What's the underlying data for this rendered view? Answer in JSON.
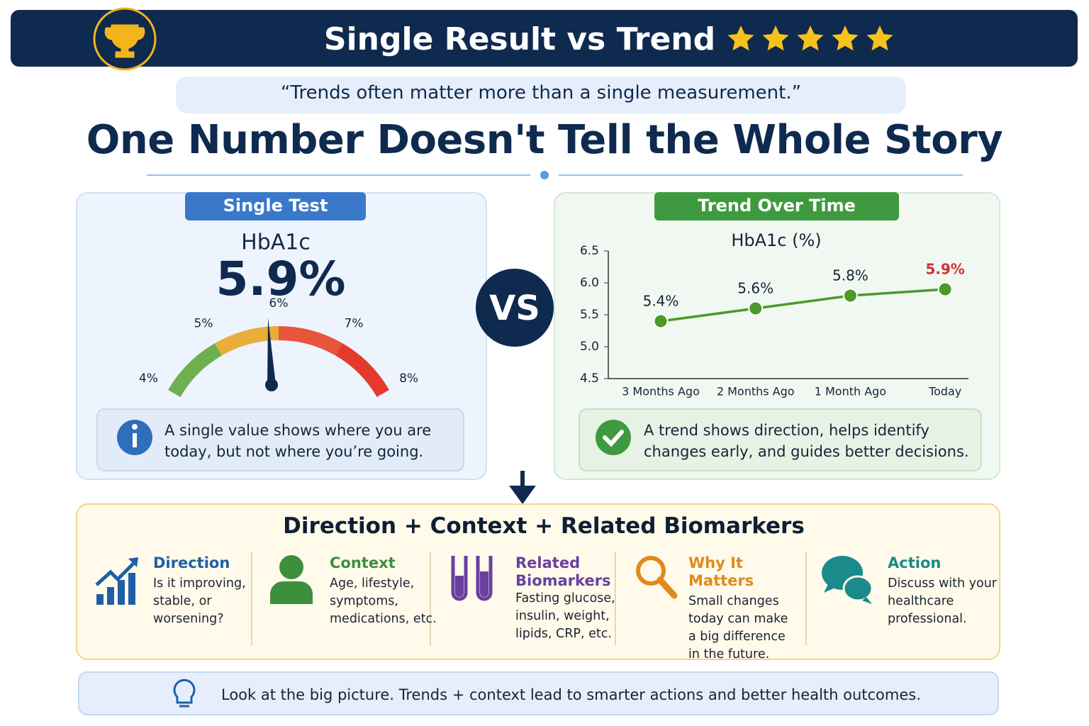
{
  "header": {
    "title": "Single Result vs Trend"
  },
  "quote": "“Trends often matter more than a single measurement.”",
  "headline": "One Number Doesn't Tell the Whole Story",
  "left_panel": {
    "label": "Single Test",
    "note": [
      "A single value shows where you are",
      "today, but not where you’re going."
    ]
  },
  "vs": "VS",
  "right_panel": {
    "label": "Trend Over Time",
    "note": [
      "A trend shows direction, helps identify",
      "changes early, and guides better decisions."
    ]
  },
  "chart_data": [
    {
      "type": "gauge",
      "title": "HbA1c",
      "value": 5.9,
      "value_label": "5.9%",
      "range": [
        4,
        8
      ],
      "ticks": [
        {
          "value": 4,
          "label": "4%"
        },
        {
          "value": 5,
          "label": "5%"
        },
        {
          "value": 6,
          "label": "6%"
        },
        {
          "value": 7,
          "label": "7%"
        },
        {
          "value": 8,
          "label": "8%"
        }
      ]
    },
    {
      "type": "line",
      "title": "HbA1c (%)",
      "categories": [
        "3 Months Ago",
        "2 Months Ago",
        "1 Month Ago",
        "Today"
      ],
      "values": [
        5.4,
        5.6,
        5.8,
        5.9
      ],
      "value_labels": [
        "5.4%",
        "5.6%",
        "5.8%",
        "5.9%"
      ],
      "color": "#4c9a2a",
      "last_label_color": "#d32f2f",
      "ylim": [
        4.5,
        6.5
      ],
      "yticks": [
        4.5,
        {
          "value": 5,
          "label": "5.0"
        },
        5.5,
        {
          "value": 6,
          "label": "6.0"
        },
        6.5
      ]
    }
  ],
  "summary": {
    "title": "Direction + Context + Related Biomarkers",
    "items": [
      {
        "title": "Direction",
        "color": "#1f5fa8",
        "lines": [
          "Is it improving,",
          "stable, or",
          "worsening?"
        ]
      },
      {
        "title": "Context",
        "color": "#3d8f3d",
        "lines": [
          "Age, lifestyle,",
          "symptoms,",
          "medications, etc."
        ]
      },
      {
        "title": "Related Biomarkers",
        "color": "#6a3fa0",
        "lines": [
          "Fasting glucose,",
          "insulin, weight,",
          "lipids, CRP, etc."
        ]
      },
      {
        "title": "Why It Matters",
        "color": "#e08a1e",
        "lines": [
          "Small changes",
          "today can make",
          "a big difference",
          "in the future."
        ]
      },
      {
        "title": "Action",
        "color": "#1a8a8a",
        "lines": [
          "Discuss with your",
          "healthcare",
          "professional."
        ]
      }
    ]
  },
  "footer": "Look at the big picture. Trends + context lead to smarter actions and better health outcomes."
}
